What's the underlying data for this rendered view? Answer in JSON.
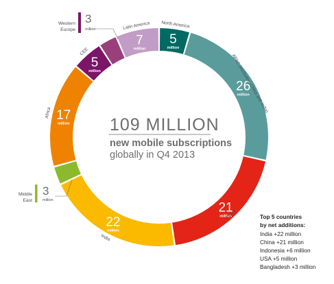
{
  "chart_data": {
    "type": "pie",
    "title": "109 MILLION",
    "subtitle_line1": "new mobile subscriptions",
    "subtitle_line2": "globally in Q4 2013",
    "unit_label": "million",
    "slices": [
      {
        "label": "North America",
        "value": 5,
        "color": "#006a63"
      },
      {
        "label": "APAC (excluding China and India)",
        "value": 26,
        "color": "#5a9c9b"
      },
      {
        "label": "China",
        "value": 21,
        "color": "#e42417"
      },
      {
        "label": "India",
        "value": 22,
        "color": "#fbba00"
      },
      {
        "label": "Middle East",
        "value": 3,
        "color": "#8cba2f"
      },
      {
        "label": "Africa",
        "value": 17,
        "color": "#ef8200"
      },
      {
        "label": "CEE",
        "value": 5,
        "color": "#7a1568"
      },
      {
        "label": "Western Europe",
        "value": 3,
        "color": "#9b3f7c"
      },
      {
        "label": "Latin America",
        "value": 7,
        "color": "#c19cc6"
      }
    ],
    "outer_callouts": [
      {
        "label_lines": [
          "Western",
          "Europe"
        ],
        "value": "3",
        "unit": "million",
        "bar_color": "#7a1568"
      },
      {
        "label_lines": [
          "Middle",
          "East"
        ],
        "value": "3",
        "unit": "million",
        "bar_color": "#8cba2f"
      }
    ],
    "top5": {
      "title_lines": [
        "Top 5 countries",
        "by net additions:"
      ],
      "items": [
        "India +22 million",
        "China +21 million",
        "Indonesia +6 million",
        "USA +5 million",
        "Bangladesh +3 million"
      ]
    }
  }
}
